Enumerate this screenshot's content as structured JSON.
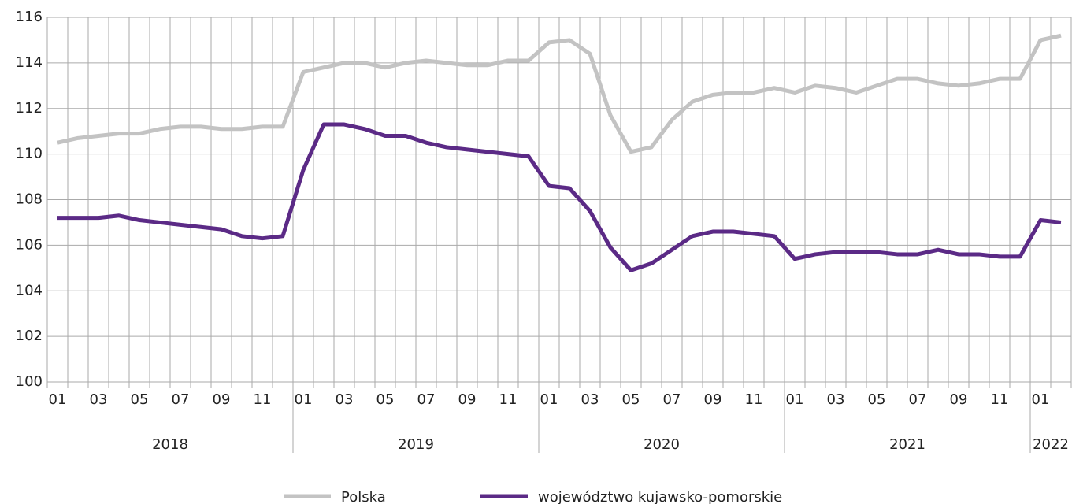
{
  "chart_data": {
    "type": "line",
    "categories": [
      "01",
      null,
      "03",
      null,
      "05",
      null,
      "07",
      null,
      "09",
      null,
      "11",
      null,
      "01",
      null,
      "03",
      null,
      "05",
      null,
      "07",
      null,
      "09",
      null,
      "11",
      null,
      "01",
      null,
      "03",
      null,
      "05",
      null,
      "07",
      null,
      "09",
      null,
      "11",
      null,
      "01",
      null,
      "03",
      null,
      "05",
      null,
      "07",
      null,
      "09",
      null,
      "11",
      null,
      "01",
      null
    ],
    "category_groups": [
      "2018",
      "2018",
      "2018",
      "2018",
      "2018",
      "2018",
      "2018",
      "2018",
      "2018",
      "2018",
      "2018",
      "2018",
      "2019",
      "2019",
      "2019",
      "2019",
      "2019",
      "2019",
      "2019",
      "2019",
      "2019",
      "2019",
      "2019",
      "2019",
      "2020",
      "2020",
      "2020",
      "2020",
      "2020",
      "2020",
      "2020",
      "2020",
      "2020",
      "2020",
      "2020",
      "2020",
      "2021",
      "2021",
      "2021",
      "2021",
      "2021",
      "2021",
      "2021",
      "2021",
      "2021",
      "2021",
      "2021",
      "2021",
      "2022",
      "2022"
    ],
    "series": [
      {
        "name": "Polska",
        "color": "#c3c3c3",
        "values": [
          110.5,
          110.7,
          110.8,
          110.9,
          110.9,
          111.1,
          111.2,
          111.2,
          111.1,
          111.1,
          111.2,
          111.2,
          113.6,
          113.8,
          114.0,
          114.0,
          113.8,
          114.0,
          114.1,
          114.0,
          113.9,
          113.9,
          114.1,
          114.1,
          114.9,
          115.0,
          114.4,
          111.7,
          110.1,
          110.3,
          111.5,
          112.3,
          112.6,
          112.7,
          112.7,
          112.9,
          112.7,
          113.0,
          112.9,
          112.7,
          113.0,
          113.3,
          113.3,
          113.1,
          113.0,
          113.1,
          113.3,
          113.3,
          115.0,
          115.2
        ]
      },
      {
        "name": "województwo kujawsko-pomorskie",
        "color": "#5b2a86",
        "values": [
          107.2,
          107.2,
          107.2,
          107.3,
          107.1,
          107.0,
          106.9,
          106.8,
          106.7,
          106.4,
          106.3,
          106.4,
          109.3,
          111.3,
          111.3,
          111.1,
          110.8,
          110.8,
          110.5,
          110.3,
          110.2,
          110.1,
          110.0,
          109.9,
          108.6,
          108.5,
          107.5,
          105.9,
          104.9,
          105.2,
          105.8,
          106.4,
          106.6,
          106.6,
          106.5,
          106.4,
          105.4,
          105.6,
          105.7,
          105.7,
          105.7,
          105.6,
          105.6,
          105.8,
          105.6,
          105.6,
          105.5,
          105.5,
          107.1,
          107.0
        ]
      }
    ],
    "ylim": [
      100,
      116
    ],
    "yticks": [
      100,
      102,
      104,
      106,
      108,
      110,
      112,
      114,
      116
    ],
    "grid": true,
    "legend": "bottom"
  }
}
